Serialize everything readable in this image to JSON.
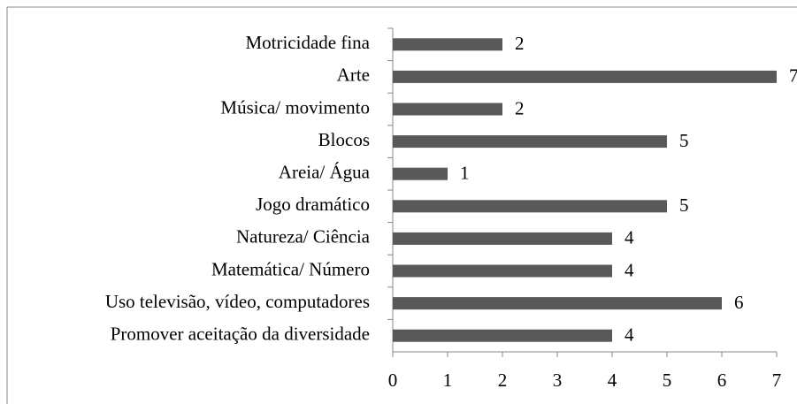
{
  "chart_data": {
    "type": "bar",
    "orientation": "horizontal",
    "categories": [
      "Motricidade fina",
      "Arte",
      "Música/ movimento",
      "Blocos",
      "Areia/ Água",
      "Jogo dramático",
      "Natureza/ Ciência",
      "Matemática/ Número",
      "Uso televisão, vídeo, computadores",
      "Promover aceitação da diversidade"
    ],
    "values": [
      2,
      7,
      2,
      5,
      1,
      5,
      4,
      4,
      6,
      4
    ],
    "color": "#595959",
    "xlim": [
      0,
      7
    ],
    "xticks": [
      0,
      1,
      2,
      3,
      4,
      5,
      6,
      7
    ]
  }
}
